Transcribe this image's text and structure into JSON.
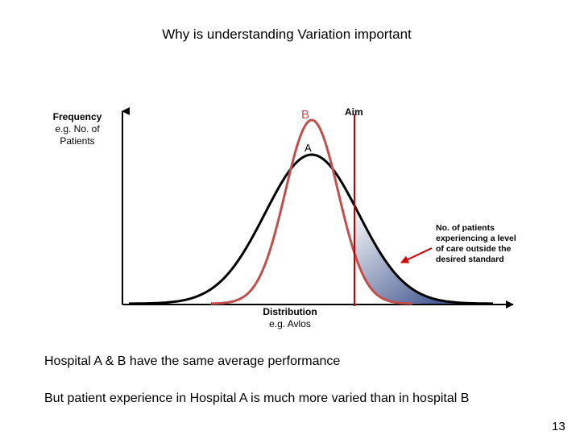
{
  "title": "Why is understanding Variation important",
  "y_axis": {
    "line1": "Frequency",
    "line2": "e.g. No. of",
    "line3": "Patients"
  },
  "x_axis": {
    "line1": "Distribution",
    "line2": "e.g. Avlos"
  },
  "curve_labels": {
    "b": "B",
    "a": "A",
    "aim": "Aim"
  },
  "annotation": {
    "lines": [
      "No. of patients",
      "experiencing a level",
      "of care outside the",
      "desired standard"
    ]
  },
  "statements": [
    "Hospital  A & B have the same average performance",
    "But patient experience in Hospital A is much more varied than in hospital B"
  ],
  "page_number": "13",
  "colors": {
    "curve_a": "#000000",
    "curve_b": "#c0504d",
    "aim_line": "#c00000",
    "shaded_start": "#ffffff",
    "shaded_end": "#223a7a"
  }
}
